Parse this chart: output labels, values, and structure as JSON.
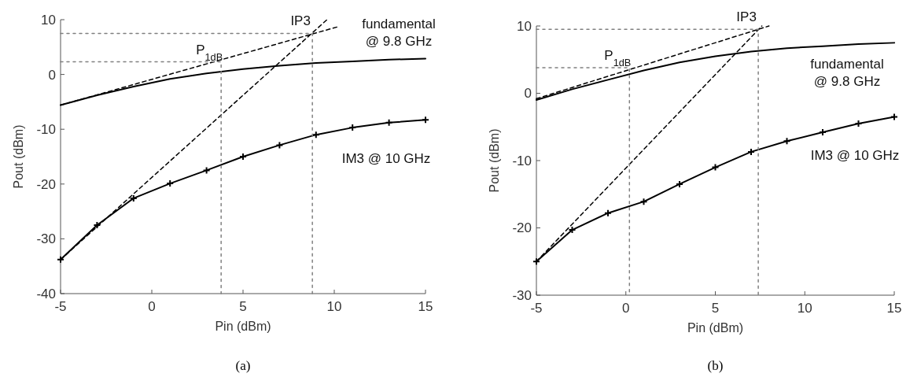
{
  "chart_data": [
    {
      "type": "line",
      "title": "(a)",
      "xlabel": "Pin (dBm)",
      "ylabel": "Pout (dBm)",
      "xlim": [
        -5,
        15
      ],
      "ylim": [
        -40,
        10
      ],
      "xticks": [
        -5,
        0,
        5,
        10,
        15
      ],
      "yticks": [
        -40,
        -30,
        -20,
        -10,
        0,
        10
      ],
      "grid": false,
      "series": [
        {
          "type": "line",
          "name": "fundamental @ 9.8 GHz",
          "color": "#000000",
          "marker": "none",
          "line_style": "solid",
          "x": [
            -5,
            -3,
            -1,
            1,
            3,
            5,
            7,
            9,
            11,
            13,
            15
          ],
          "values": [
            -5.6,
            -3.8,
            -2.2,
            -0.8,
            0.2,
            1.0,
            1.6,
            2.1,
            2.4,
            2.7,
            2.9
          ]
        },
        {
          "type": "line",
          "name": "IM3 @ 10 GHz",
          "color": "#000000",
          "marker": "cross",
          "line_style": "solid",
          "x": [
            -5,
            -3,
            -1,
            1,
            3,
            5,
            7,
            9,
            11,
            13,
            15
          ],
          "values": [
            -33.8,
            -27.5,
            -22.6,
            -19.9,
            -17.5,
            -15,
            -12.9,
            -11,
            -9.7,
            -8.8,
            -8.3
          ]
        },
        {
          "type": "line",
          "color": "#000000",
          "marker": "none",
          "line_style": "dashed",
          "x": [
            -5,
            10.3
          ],
          "values": [
            -5.6,
            8.8
          ]
        },
        {
          "type": "line",
          "color": "#000000",
          "marker": "none",
          "line_style": "dashed",
          "x": [
            -5,
            9.6
          ],
          "values": [
            -33.8,
            10
          ]
        },
        {
          "type": "line",
          "name": "IP3",
          "color": "#808080",
          "marker": "none",
          "line_style": "dotted",
          "x": [
            -5,
            8.8,
            8.8
          ],
          "values": [
            7.5,
            7.5,
            -40
          ]
        },
        {
          "type": "line",
          "name": "P$_{1dB}$",
          "color": "#808080",
          "marker": "none",
          "line_style": "dotted",
          "x": [
            -5,
            3.8,
            3.8
          ],
          "values": [
            2.3,
            2.3,
            -40
          ]
        }
      ]
    },
    {
      "type": "line",
      "title": "(b)",
      "xlabel": "Pin (dBm)",
      "ylabel": "Pout (dBm)",
      "xlim": [
        -5,
        15
      ],
      "ylim": [
        -30,
        10
      ],
      "xticks": [
        -5,
        0,
        5,
        10,
        15
      ],
      "yticks": [
        -30,
        -20,
        -10,
        0,
        10
      ],
      "grid": false,
      "series": [
        {
          "type": "line",
          "name": "fundamental @ 9.8 GHz",
          "color": "#000000",
          "marker": "none",
          "line_style": "solid",
          "x": [
            -5,
            -3,
            -1,
            1,
            3,
            5,
            7,
            9,
            11,
            13,
            15
          ],
          "values": [
            -1.0,
            0.6,
            2.0,
            3.4,
            4.6,
            5.5,
            6.2,
            6.7,
            7.0,
            7.3,
            7.5
          ]
        },
        {
          "type": "line",
          "name": "IM3 @ 10 GHz",
          "color": "#000000",
          "marker": "cross",
          "line_style": "solid",
          "x": [
            -5,
            -3,
            -1,
            1,
            3,
            5,
            7,
            9,
            11,
            13,
            15
          ],
          "values": [
            -25,
            -20.3,
            -17.8,
            -16.1,
            -13.5,
            -11,
            -8.7,
            -7.1,
            -5.8,
            -4.5,
            -3.5
          ]
        },
        {
          "type": "line",
          "color": "#000000",
          "marker": "none",
          "line_style": "dashed",
          "x": [
            -5,
            8.0
          ],
          "values": [
            -0.8,
            10
          ]
        },
        {
          "type": "line",
          "color": "#000000",
          "marker": "none",
          "line_style": "dashed",
          "x": [
            -5,
            7.6
          ],
          "values": [
            -25,
            10
          ]
        },
        {
          "type": "line",
          "name": "IP3",
          "color": "#808080",
          "marker": "none",
          "line_style": "dotted",
          "x": [
            -5,
            7.4,
            7.4
          ],
          "values": [
            9.5,
            9.5,
            -30
          ]
        },
        {
          "type": "line",
          "name": "P$_{1dB}$",
          "color": "#808080",
          "marker": "none",
          "line_style": "dotted",
          "x": [
            -5,
            0.2,
            0.2
          ],
          "values": [
            3.8,
            3.8,
            -30
          ]
        }
      ]
    }
  ]
}
